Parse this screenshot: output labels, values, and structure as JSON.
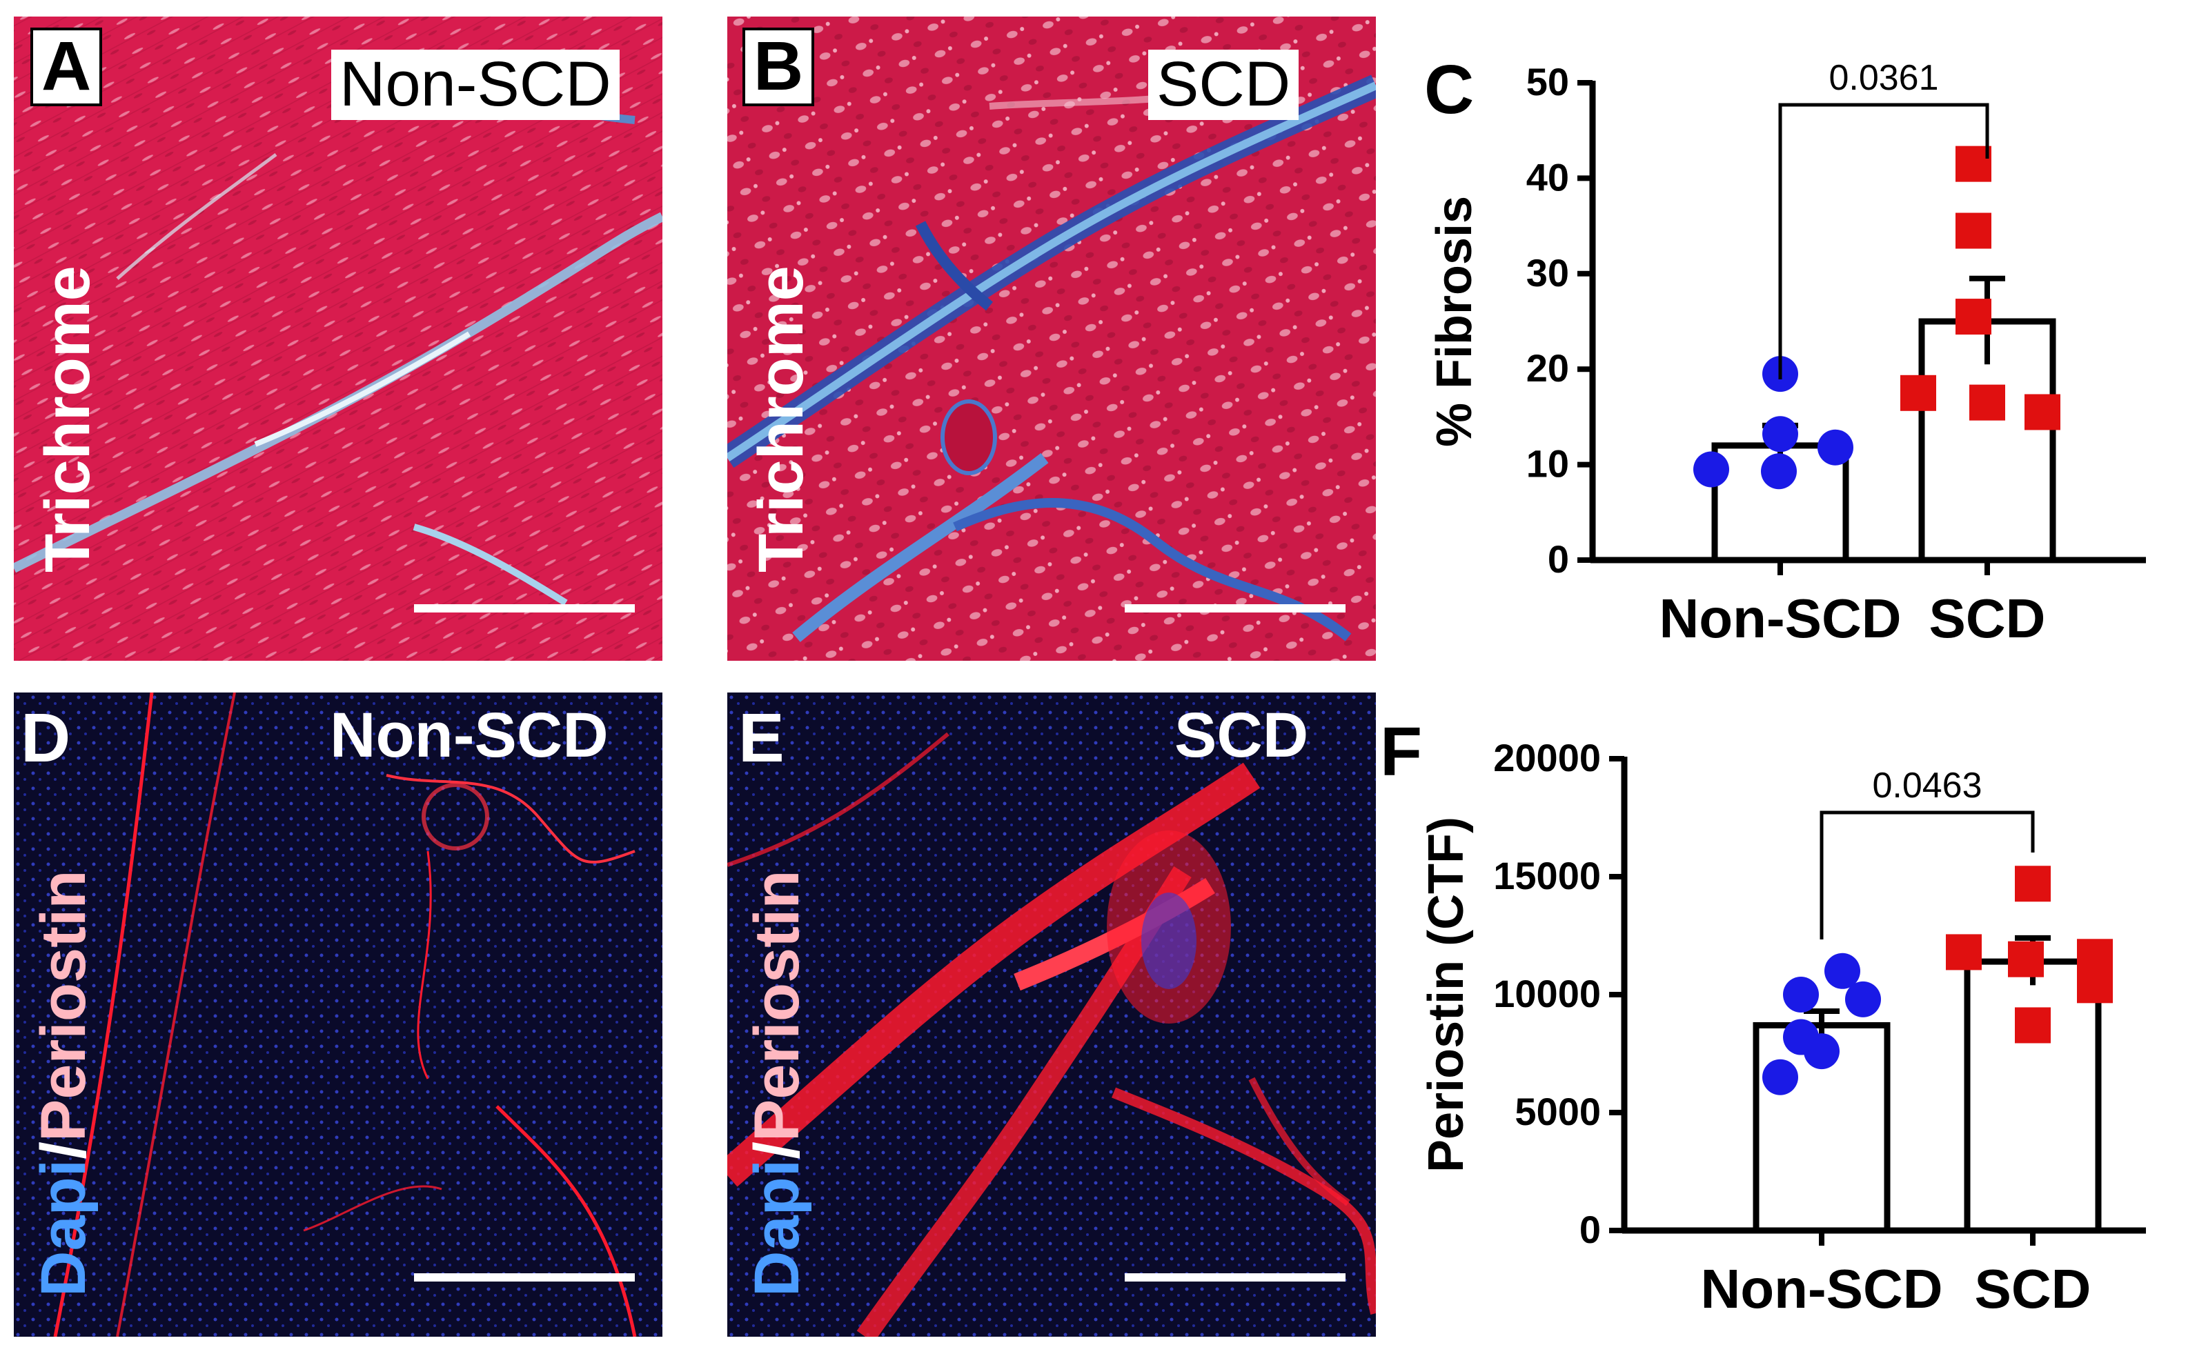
{
  "panels": {
    "A": {
      "letter": "A",
      "condition": "Non-SCD",
      "stain": "Trichrome"
    },
    "B": {
      "letter": "B",
      "condition": "SCD",
      "stain": "Trichrome"
    },
    "C": {
      "letter": "C"
    },
    "D": {
      "letter": "D",
      "condition": "Non-SCD",
      "stain_part1": "Dapi",
      "stain_sep": "/",
      "stain_part2": "Periostin"
    },
    "E": {
      "letter": "E",
      "condition": "SCD",
      "stain_part1": "Dapi",
      "stain_sep": "/",
      "stain_part2": "Periostin"
    },
    "F": {
      "letter": "F"
    }
  },
  "colors": {
    "non_scd": "#1a1ae6",
    "scd": "#e01010",
    "trichrome_bg": "#d81c4e",
    "collagen": "#4a8fd6",
    "fluor_bg": "#0a0a2a",
    "periostin": "#ff1a2e",
    "dapi": "#4a5cff"
  },
  "chart_data": [
    {
      "type": "bar",
      "panel": "C",
      "categories": [
        "Non-SCD",
        "SCD"
      ],
      "ylabel": "% Fibrosis",
      "xlabel": "",
      "ylim": [
        0,
        50
      ],
      "yticks": [
        0,
        10,
        20,
        30,
        40,
        50
      ],
      "means": [
        12,
        25
      ],
      "sem": [
        2.1,
        4.5
      ],
      "points": [
        [
          19.5,
          13.2,
          11.8,
          9.5,
          9.3
        ],
        [
          41.5,
          34.5,
          25.5,
          17.5,
          16.5,
          15.5
        ]
      ],
      "significance": {
        "label": "0.0361",
        "between": [
          0,
          1
        ]
      },
      "grid": false
    },
    {
      "type": "bar",
      "panel": "F",
      "categories": [
        "Non-SCD",
        "SCD"
      ],
      "ylabel": "Periostin (CTF)",
      "xlabel": "",
      "ylim": [
        0,
        20000
      ],
      "yticks": [
        0,
        5000,
        10000,
        15000,
        20000
      ],
      "means": [
        8700,
        11400
      ],
      "sem": [
        600,
        1000
      ],
      "points": [
        [
          11000,
          10000,
          9800,
          8200,
          7600,
          6500
        ],
        [
          14700,
          11800,
          11600,
          11500,
          10400,
          8700
        ]
      ],
      "significance": {
        "label": "0.0463",
        "between": [
          0,
          1
        ]
      },
      "grid": false
    }
  ]
}
